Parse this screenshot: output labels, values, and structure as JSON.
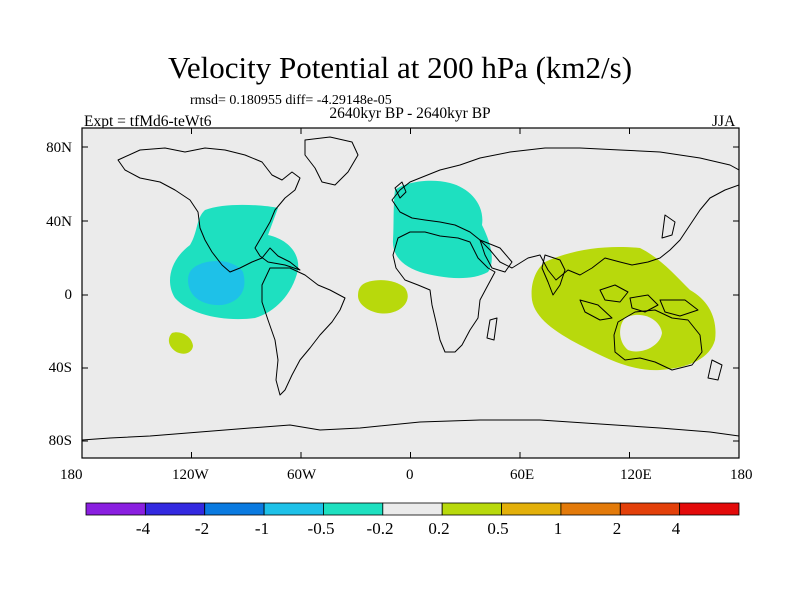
{
  "title": "Velocity Potential at 200 hPa (km2/s)",
  "stats": "rmsd= 0.180955 diff= -4.29148e-05",
  "subtitle": "2640kyr BP - 2640kyr BP",
  "experiment": "Expt = tfMd6-teWt6",
  "season": "JJA",
  "x_ticks": [
    "180",
    "120W",
    "60W",
    "0",
    "60E",
    "120E",
    "180"
  ],
  "y_ticks": [
    "80N",
    "40N",
    "0",
    "40S",
    "80S"
  ],
  "colorbar": {
    "labels": [
      "-4",
      "-2",
      "-1",
      "-0.5",
      "-0.2",
      "0.2",
      "0.5",
      "1",
      "2",
      "4"
    ],
    "colors": [
      "#8a1fe0",
      "#3329e0",
      "#0a7ae0",
      "#1ec1e8",
      "#1ee0c0",
      "#ebebeb",
      "#b8d90c",
      "#e3b00a",
      "#e37a0a",
      "#e3400a",
      "#e30a0a"
    ]
  },
  "map": {
    "background": "#ebebeb",
    "anomalies": [
      {
        "region": "eastern tropical Pacific",
        "level": "-0.5 to -0.2",
        "color": "#1ee0c0"
      },
      {
        "region": "eastern tropical Pacific core",
        "level": "-1 to -0.5",
        "color": "#1ec1e8"
      },
      {
        "region": "North Africa / Mediterranean / Europe",
        "level": "-0.5 to -0.2",
        "color": "#1ee0c0"
      },
      {
        "region": "tropical Atlantic",
        "level": "0.2 to 0.5",
        "color": "#b8d90c"
      },
      {
        "region": "Indo-Pacific / Maritime Continent / Australia",
        "level": "0.2 to 0.5",
        "color": "#b8d90c"
      },
      {
        "region": "South-east Pacific patch",
        "level": "0.2 to 0.5",
        "color": "#b8d90c"
      }
    ]
  }
}
